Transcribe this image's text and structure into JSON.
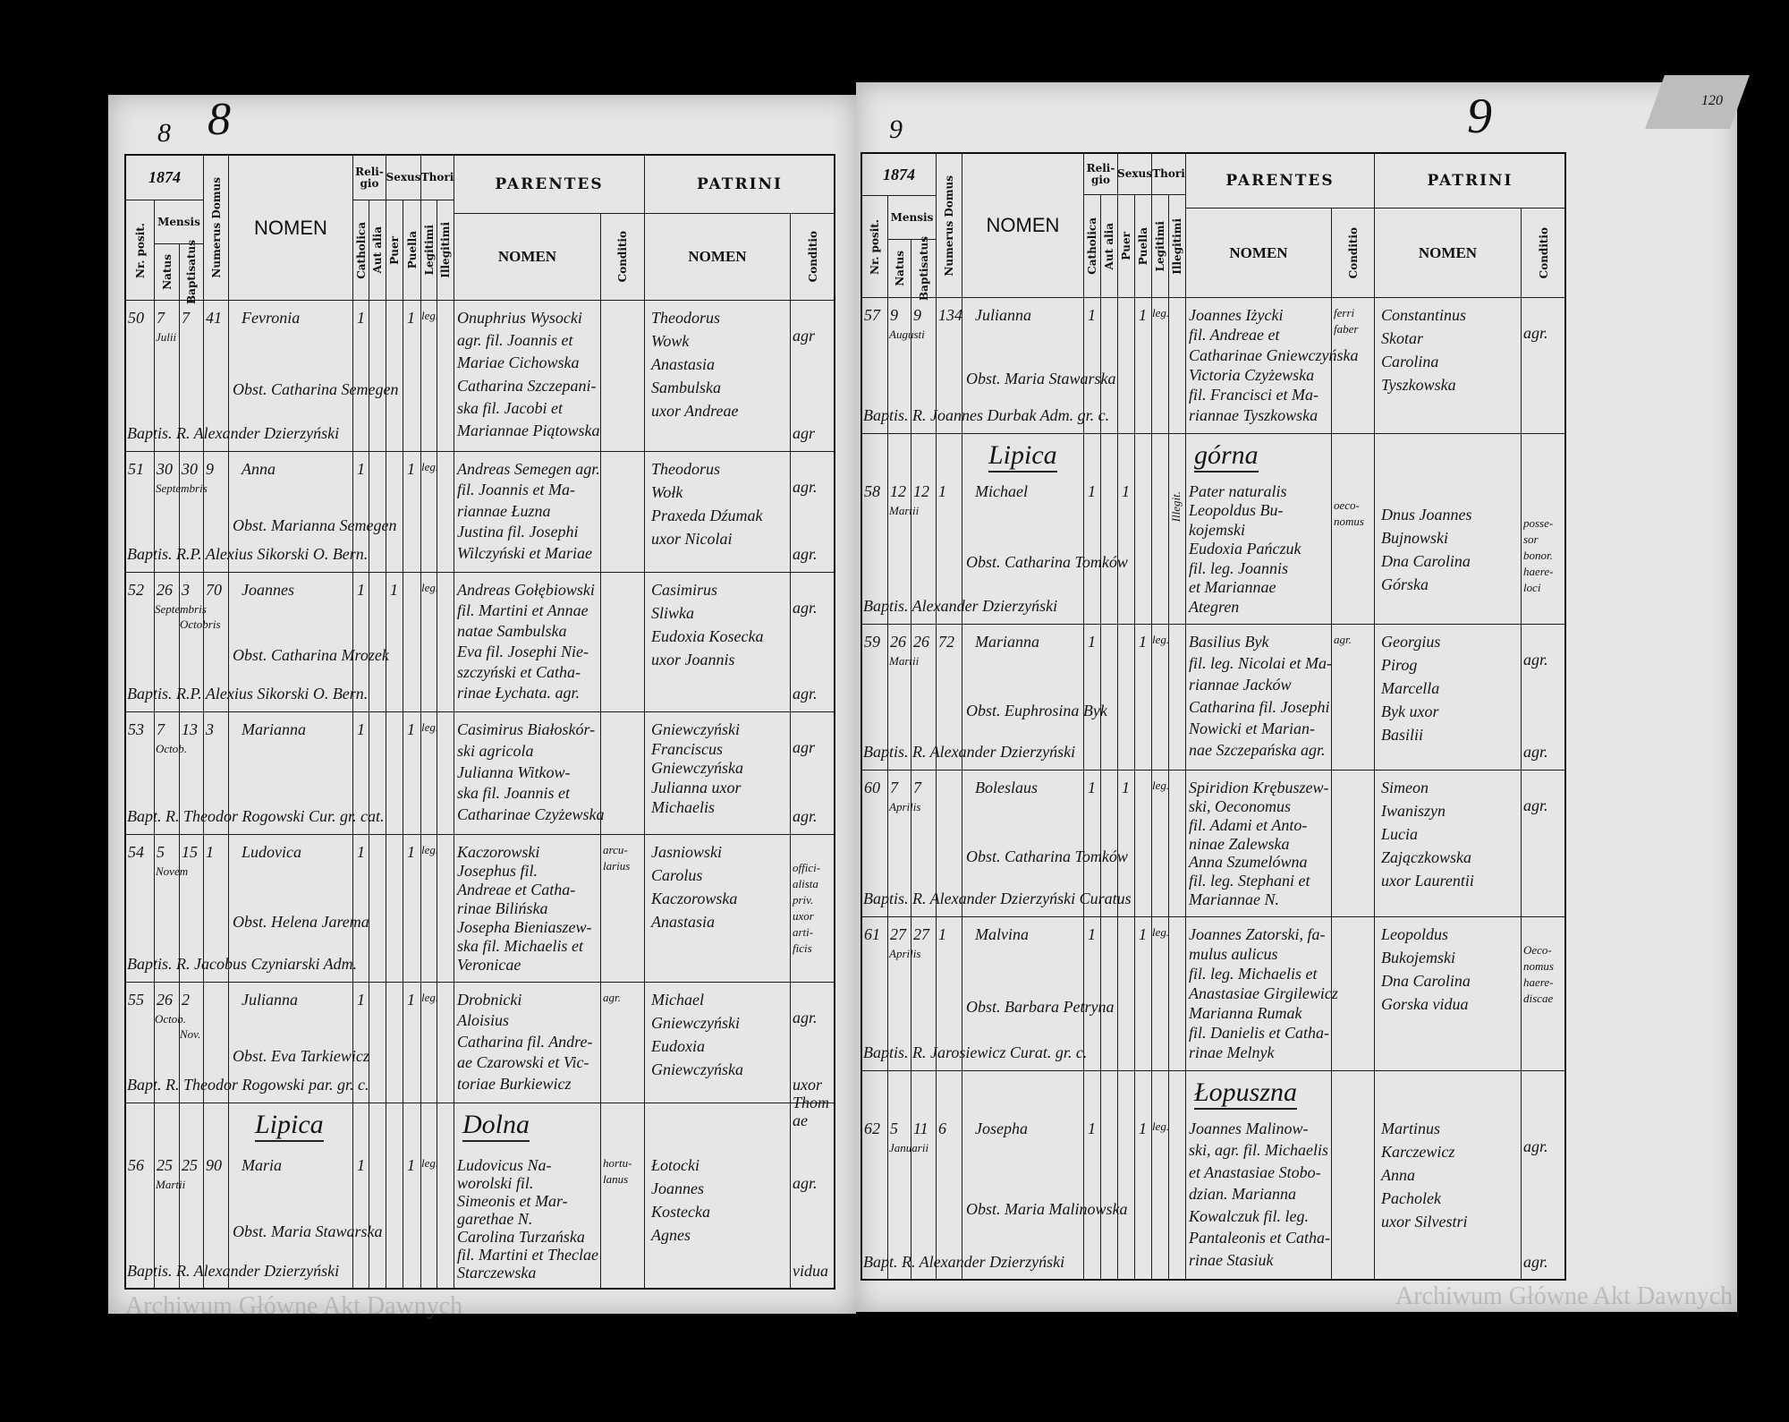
{
  "header_labels": {
    "nr": "Nr. posit.",
    "mensis": "Mensis",
    "natus": "Natus",
    "baptisatus": "Baptisatus",
    "domus": "Numerus Domus",
    "nomen": "NOMEN",
    "religio": "Reli-gio",
    "catholica": "Catholica",
    "aut_alia": "Aut alia",
    "sexus": "Sexus",
    "puer": "Puer",
    "puella": "Puella",
    "thori": "Thori",
    "legitimi": "Legitimi",
    "illegitimi": "Illegitimi",
    "parentes": "PARENTES",
    "patrini": "PATRINI",
    "sub_nomen": "NOMEN",
    "conditio": "Conditio"
  },
  "watermark": "Archiwum Główne Akt Dawnych",
  "corner_number": "120",
  "left_page": {
    "page_number_small": "8",
    "page_number": "8",
    "year": "1874",
    "rows": [
      {
        "nr": "50",
        "natus": "7",
        "baptisatus": "7",
        "mensis": "Julii",
        "domus": "41",
        "nomen": "Fevronia",
        "catholica": "1",
        "sexus": "puella",
        "mark": "1",
        "thori": "leg.",
        "parentes": [
          "Onuphrius Wysocki",
          "agr. fil. Joannis et",
          "Mariae Cichowska",
          "Catharina Szczepani-",
          "ska fil. Jacobi et",
          "Mariannae Piątowska"
        ],
        "parentes_conditio": [],
        "patrini": [
          "Theodorus",
          "Wowk",
          "Anastasia",
          "Sambulska",
          "uxor Andreae"
        ],
        "patrini_conditio": [
          "agr",
          "agr"
        ],
        "obstetrix": "Obst. Catharina Semegen",
        "baptizans": "Baptis. R. Alexander Dzierzyński"
      },
      {
        "nr": "51",
        "natus": "30",
        "baptisatus": "30",
        "mensis": "Septembris",
        "domus": "9",
        "nomen": "Anna",
        "catholica": "1",
        "sexus": "puella",
        "mark": "1",
        "thori": "leg.",
        "parentes": [
          "Andreas Semegen agr.",
          "fil. Joannis et Ma-",
          "riannae Łuzna",
          "Justina fil. Josephi",
          "Wilczyński et Mariae"
        ],
        "parentes_conditio": [],
        "patrini": [
          "Theodorus",
          "Wołk",
          "Praxeda Dźumak",
          "uxor Nicolai"
        ],
        "patrini_conditio": [
          "agr.",
          "agr."
        ],
        "obstetrix": "Obst. Marianna Semegen",
        "baptizans": "Baptis. R.P. Alexius Sikorski O. Bern."
      },
      {
        "nr": "52",
        "natus": "26",
        "baptisatus": "3",
        "natus_mensis": "Septembris",
        "baptisatus_mensis": "Octobris",
        "domus": "70",
        "nomen": "Joannes",
        "catholica": "1",
        "sexus": "puer",
        "mark": "1",
        "thori": "leg.",
        "parentes": [
          "Andreas Gołębiowski",
          "fil. Martini et Annae",
          "natae Sambulska",
          "Eva fil. Josephi Nie-",
          "szczyński et Catha-",
          "rinae Łychata. agr."
        ],
        "parentes_conditio": [],
        "patrini": [
          "Casimirus",
          "Sliwka",
          "Eudoxia Kosecka",
          "uxor Joannis"
        ],
        "patrini_conditio": [
          "agr.",
          "agr."
        ],
        "obstetrix": "Obst. Catharina Mrozek",
        "baptizans": "Baptis. R.P. Alexius Sikorski O. Bern."
      },
      {
        "nr": "53",
        "natus": "7",
        "baptisatus": "13",
        "mensis": "Octob.",
        "domus": "3",
        "nomen": "Marianna",
        "catholica": "1",
        "sexus": "puella",
        "mark": "1",
        "thori": "leg.",
        "parentes": [
          "Casimirus Białoskór-",
          "ski agricola",
          "Julianna Witkow-",
          "ska fil. Joannis et",
          "Catharinae Czyżewska"
        ],
        "parentes_conditio": [],
        "patrini": [
          "Gniewczyński",
          "Franciscus",
          "Gniewczyńska",
          "Julianna uxor",
          "Michaelis"
        ],
        "patrini_conditio": [
          "agr",
          "agr."
        ],
        "obstetrix": "",
        "baptizans": "Bapt. R. Theodor Rogowski Cur. gr. cat."
      },
      {
        "nr": "54",
        "natus": "5",
        "baptisatus": "15",
        "mensis": "Novem",
        "domus": "1",
        "nomen": "Ludovica",
        "catholica": "1",
        "sexus": "puella",
        "mark": "1",
        "thori": "leg.",
        "parentes": [
          "Kaczorowski",
          "Josephus fil.",
          "Andreae et Catha-",
          "rinae Bilińska",
          "Josepha Bieniaszew-",
          "ska fil. Michaelis et",
          "Veronicae"
        ],
        "parentes_conditio": [
          "arcu-",
          "larius"
        ],
        "patrini": [
          "Jasniowski",
          "Carolus",
          "Kaczorowska",
          "Anastasia"
        ],
        "patrini_conditio": [
          "offici-",
          "alista",
          "priv.",
          "uxor",
          "arti-",
          "ficis"
        ],
        "obstetrix": "Obst. Helena Jarema",
        "baptizans": "Baptis. R. Jacobus Czyniarski Adm."
      },
      {
        "nr": "55",
        "natus": "26",
        "baptisatus": "2",
        "natus_mensis": "Octob.",
        "baptisatus_mensis": "Nov.",
        "domus": "",
        "nomen": "Julianna",
        "catholica": "1",
        "sexus": "puella",
        "mark": "1",
        "thori": "leg.",
        "parentes": [
          "Drobnicki",
          "Aloisius",
          "Catharina fil. Andre-",
          "ae Czarowski et Vic-",
          "toriae Burkiewicz"
        ],
        "parentes_conditio": [
          "agr."
        ],
        "patrini": [
          "Michael",
          "Gniewczyński",
          "Eudoxia",
          "Gniewczyńska"
        ],
        "patrini_conditio": [
          "agr.",
          "uxor Thomae"
        ],
        "obstetrix": "Obst. Eva Tarkiewicz",
        "baptizans": "Bapt. R. Theodor Rogowski par. gr. c."
      },
      {
        "heading": [
          "Lipica",
          "Dolna"
        ],
        "nr": "56",
        "natus": "25",
        "baptisatus": "25",
        "mensis": "Martii",
        "domus": "90",
        "nomen": "Maria",
        "catholica": "1",
        "sexus": "puella",
        "mark": "1",
        "thori": "leg.",
        "parentes": [
          "Ludovicus Na-",
          "worolski fil.",
          "Simeonis et Mar-",
          "garethae N.",
          "Carolina Turzańska",
          "fil. Martini et Theclae",
          "Starczewska"
        ],
        "parentes_conditio": [
          "hortu-",
          "lanus"
        ],
        "patrini": [
          "Łotocki",
          "Joannes",
          "Kostecka",
          "Agnes"
        ],
        "patrini_conditio": [
          "agr.",
          "vidua"
        ],
        "obstetrix": "Obst. Maria Stawarska",
        "baptizans": "Baptis. R. Alexander Dzierzyński"
      }
    ]
  },
  "right_page": {
    "page_number_small": "9",
    "page_number": "9",
    "year": "1874",
    "rows": [
      {
        "nr": "57",
        "natus": "9",
        "baptisatus": "9",
        "mensis": "Augusti",
        "domus": "134",
        "nomen": "Julianna",
        "catholica": "1",
        "sexus": "puella",
        "mark": "1",
        "thori": "leg.",
        "parentes": [
          "Joannes Iżycki",
          "fil. Andreae et",
          "Catharinae Gniewczyńska",
          "Victoria Czyżewska",
          "fil. Francisci et Ma-",
          "riannae Tyszkowska"
        ],
        "parentes_conditio": [
          "ferri",
          "faber"
        ],
        "patrini": [
          "Constantinus",
          "Skotar",
          "Carolina",
          "Tyszkowska"
        ],
        "patrini_conditio": [
          "agr."
        ],
        "obstetrix": "Obst. Maria Stawarska",
        "baptizans": "Baptis. R. Joannes Durbak Adm. gr. c."
      },
      {
        "heading": [
          "Lipica",
          "górna"
        ],
        "nr": "58",
        "natus": "12",
        "baptisatus": "12",
        "mensis": "Martii",
        "domus": "1",
        "nomen": "Michael",
        "catholica": "1",
        "sexus": "puer",
        "mark": "1",
        "thori_illegitimi": "Illegit.",
        "parentes": [
          "Pater naturalis",
          "Leopoldus Bu-",
          "kojemski",
          "Eudoxia Pańczuk",
          "fil. leg. Joannis",
          "et Mariannae",
          "Ategren"
        ],
        "parentes_conditio": [
          "",
          "oeco-",
          "nomus"
        ],
        "patrini": [
          "",
          "Dnus Joannes",
          "Bujnowski",
          "Dna Carolina",
          "Górska"
        ],
        "patrini_conditio": [
          "",
          "posse-",
          "sor",
          "bonor.",
          "haere-",
          "loci"
        ],
        "obstetrix": "Obst. Catharina Tomków",
        "baptizans": "Baptis. Alexander Dzierzyński"
      },
      {
        "nr": "59",
        "natus": "26",
        "baptisatus": "26",
        "mensis": "Martii",
        "domus": "72",
        "nomen": "Marianna",
        "catholica": "1",
        "sexus": "puella",
        "mark": "1",
        "thori": "leg.",
        "parentes": [
          "Basilius Byk",
          "fil. leg. Nicolai et Ma-",
          "riannae Jacków",
          "Catharina fil. Josephi",
          "Nowicki et Marian-",
          "nae Szczepańska agr."
        ],
        "parentes_conditio": [
          "agr."
        ],
        "patrini": [
          "Georgius",
          "Pirog",
          "Marcella",
          "Byk uxor",
          "Basilii"
        ],
        "patrini_conditio": [
          "agr.",
          "agr."
        ],
        "obstetrix": "Obst. Euphrosina Byk",
        "baptizans": "Baptis. R. Alexander Dzierzyński"
      },
      {
        "nr": "60",
        "natus": "7",
        "baptisatus": "7",
        "mensis": "Aprilis",
        "domus": "",
        "nomen": "Boleslaus",
        "catholica": "1",
        "sexus": "puer",
        "mark": "1",
        "thori": "leg.",
        "parentes": [
          "Spiridion Krębuszew-",
          "ski, Oeconomus",
          "fil. Adami et Anto-",
          "ninae Zalewska",
          "Anna Szumelówna",
          "fil. leg. Stephani et",
          "Mariannae N."
        ],
        "parentes_conditio": [],
        "patrini": [
          "Simeon",
          "Iwaniszyn",
          "Lucia",
          "Zajączkowska",
          "uxor Laurentii"
        ],
        "patrini_conditio": [
          "agr."
        ],
        "obstetrix": "Obst. Catharina Tomków",
        "baptizans": "Baptis. R. Alexander Dzierzyński Curatus"
      },
      {
        "nr": "61",
        "natus": "27",
        "baptisatus": "27",
        "mensis": "Aprilis",
        "domus": "1",
        "nomen": "Malvina",
        "catholica": "1",
        "sexus": "puella",
        "mark": "1",
        "thori": "leg.",
        "parentes": [
          "Joannes Zatorski, fa-",
          "mulus aulicus",
          "fil. leg. Michaelis et",
          "Anastasiae Girgilewicz",
          "Marianna Rumak",
          "fil. Danielis et Catha-",
          "rinae Melnyk"
        ],
        "parentes_conditio": [],
        "patrini": [
          "Leopoldus",
          "Bukojemski",
          "Dna Carolina",
          "Gorska vidua"
        ],
        "patrini_conditio": [
          "Oeco-",
          "nomus",
          "haere-",
          "discae"
        ],
        "obstetrix": "Obst. Barbara Petryna",
        "baptizans": "Baptis. R. Jarosiewicz Curat. gr. c."
      },
      {
        "heading": [
          "Łopuszna"
        ],
        "nr": "62",
        "natus": "5",
        "baptisatus": "11",
        "mensis": "Januarii",
        "domus": "6",
        "nomen": "Josepha",
        "catholica": "1",
        "sexus": "puella",
        "mark": "1",
        "thori": "leg.",
        "parentes": [
          "Joannes Malinow-",
          "ski, agr. fil. Michaelis",
          "et Anastasiae Stobo-",
          "dzian. Marianna",
          "Kowalczuk fil. leg.",
          "Pantaleonis et Catha-",
          "rinae Stasiuk"
        ],
        "parentes_conditio": [],
        "patrini": [
          "Martinus",
          "Karczewicz",
          "Anna",
          "Pacholek",
          "uxor Silvestri"
        ],
        "patrini_conditio": [
          "agr.",
          "agr."
        ],
        "obstetrix": "Obst. Maria Malinowska",
        "baptizans": "Bapt. R. Alexander Dzierzyński"
      }
    ]
  }
}
